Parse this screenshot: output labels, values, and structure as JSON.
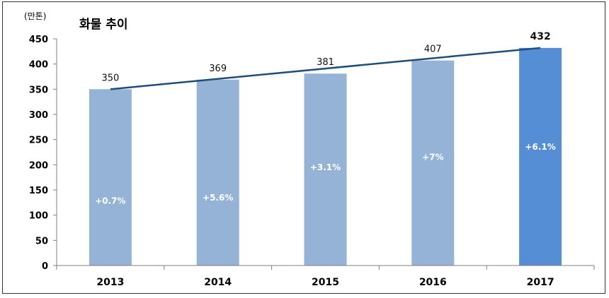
{
  "chart_data": {
    "type": "bar",
    "title": "화물 추이",
    "unit_label": "(만톤)",
    "categories": [
      "2013",
      "2014",
      "2015",
      "2016",
      "2017"
    ],
    "values": [
      350,
      369,
      381,
      407,
      432
    ],
    "growth_labels": [
      "+0.7%",
      "+5.6%",
      "+3.1%",
      "+7%",
      "+6.1%"
    ],
    "trend_line": true,
    "highlight_index": 4,
    "ylim": [
      0,
      450
    ],
    "yticks": [
      0,
      50,
      100,
      150,
      200,
      250,
      300,
      350,
      400,
      450
    ],
    "xlabel": "",
    "ylabel": "",
    "grid": false,
    "colors": {
      "bar": "#95b3d7",
      "highlight": "#558ed5",
      "trend": "#1f4e79"
    }
  }
}
